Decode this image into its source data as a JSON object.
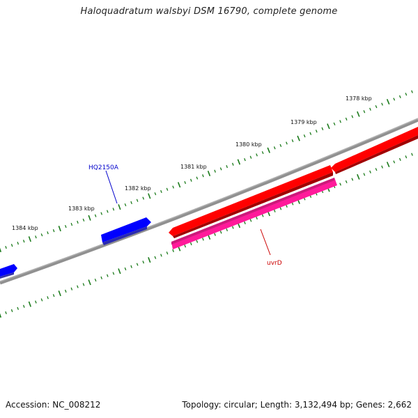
{
  "title": "Haloquadratum walsbyi DSM 16790, complete genome",
  "footer": {
    "accession": "Accession: NC_008212",
    "summary": "Topology: circular; Length: 3,132,494 bp; Genes: 2,662"
  },
  "scale_labels": [
    "1378 kbp",
    "1379 kbp",
    "1380 kbp",
    "1381 kbp",
    "1382 kbp",
    "1383 kbp",
    "1384 kbp"
  ],
  "genes": {
    "hq2150a": {
      "label": "HQ2150A",
      "color": "#0000cc"
    },
    "uvrd": {
      "label": "uvrD",
      "color": "#cc0000"
    }
  },
  "colors": {
    "backbone": "#808080",
    "ticks": "#1a7a1a",
    "forward_gene": "#0000ff",
    "reverse_gene": "#ff0000",
    "rna_feature": "#ff1a9a"
  }
}
